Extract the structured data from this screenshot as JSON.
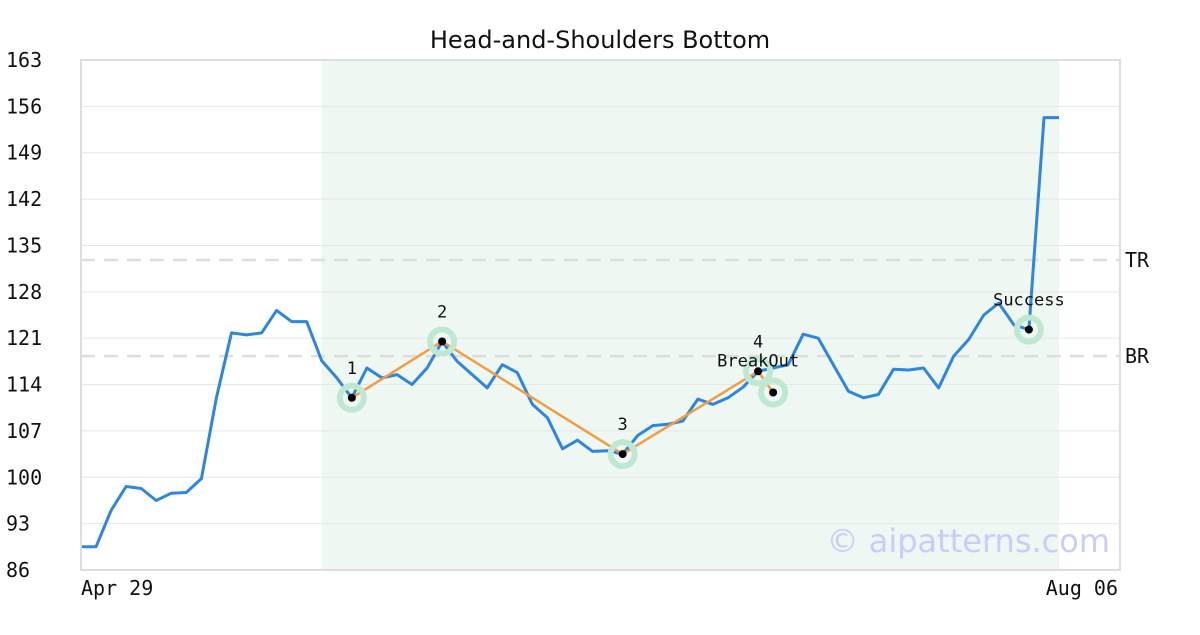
{
  "chart_data": {
    "type": "line",
    "title": "Head-and-Shoulders Bottom",
    "xlabel": "",
    "ylabel": "",
    "x_tick_labels": [
      "Apr 29",
      "Aug 06"
    ],
    "ylim": [
      86,
      163
    ],
    "y_ticks": [
      86,
      93,
      100,
      107,
      114,
      121,
      128,
      135,
      142,
      149,
      156,
      163
    ],
    "grid": "horizontal",
    "line_color": "#2e86de",
    "pattern_line_color": "#f39c44",
    "highlight_color": "#eef7f2",
    "marker_ring_color": "#bfe8d3",
    "series": [
      {
        "values": [
          89.5,
          89.5,
          95.0,
          98.6,
          98.3,
          96.5,
          97.6,
          97.7,
          99.8,
          112.0,
          121.8,
          121.5,
          121.8,
          125.2,
          123.5,
          123.5,
          117.6,
          115.0,
          112.0,
          116.5,
          115.0,
          115.5,
          114.0,
          116.5,
          120.5,
          117.5,
          115.5,
          113.5,
          117.0,
          115.8,
          111.0,
          109.0,
          104.3,
          105.6,
          103.9,
          104.0,
          103.5,
          106.3,
          107.8,
          108.0,
          108.5,
          111.8,
          111.0,
          112.0,
          113.6,
          116.0,
          116.5,
          117.0,
          121.6,
          121.0,
          117.0,
          113.0,
          112.0,
          112.5,
          116.3,
          116.2,
          116.5,
          113.5,
          118.3,
          120.8,
          124.5,
          126.3,
          123.0,
          122.3,
          154.3,
          154.3
        ]
      }
    ],
    "highlight_range": [
      16,
      64
    ],
    "levels": [
      {
        "label": "TR",
        "value": 132.8
      },
      {
        "label": "BR",
        "value": 118.3
      }
    ],
    "pattern_points": [
      {
        "index": 18,
        "value": 112.0,
        "label": "1"
      },
      {
        "index": 24,
        "value": 120.5,
        "label": "2"
      },
      {
        "index": 36,
        "value": 103.5,
        "label": "3"
      },
      {
        "index": 45,
        "value": 116.0,
        "label": "4"
      }
    ],
    "events": [
      {
        "index": 46,
        "value": 112.8,
        "label": "BreakOut"
      },
      {
        "index": 63,
        "value": 122.3,
        "label": "Success"
      }
    ],
    "watermark": "© aipatterns.com"
  }
}
